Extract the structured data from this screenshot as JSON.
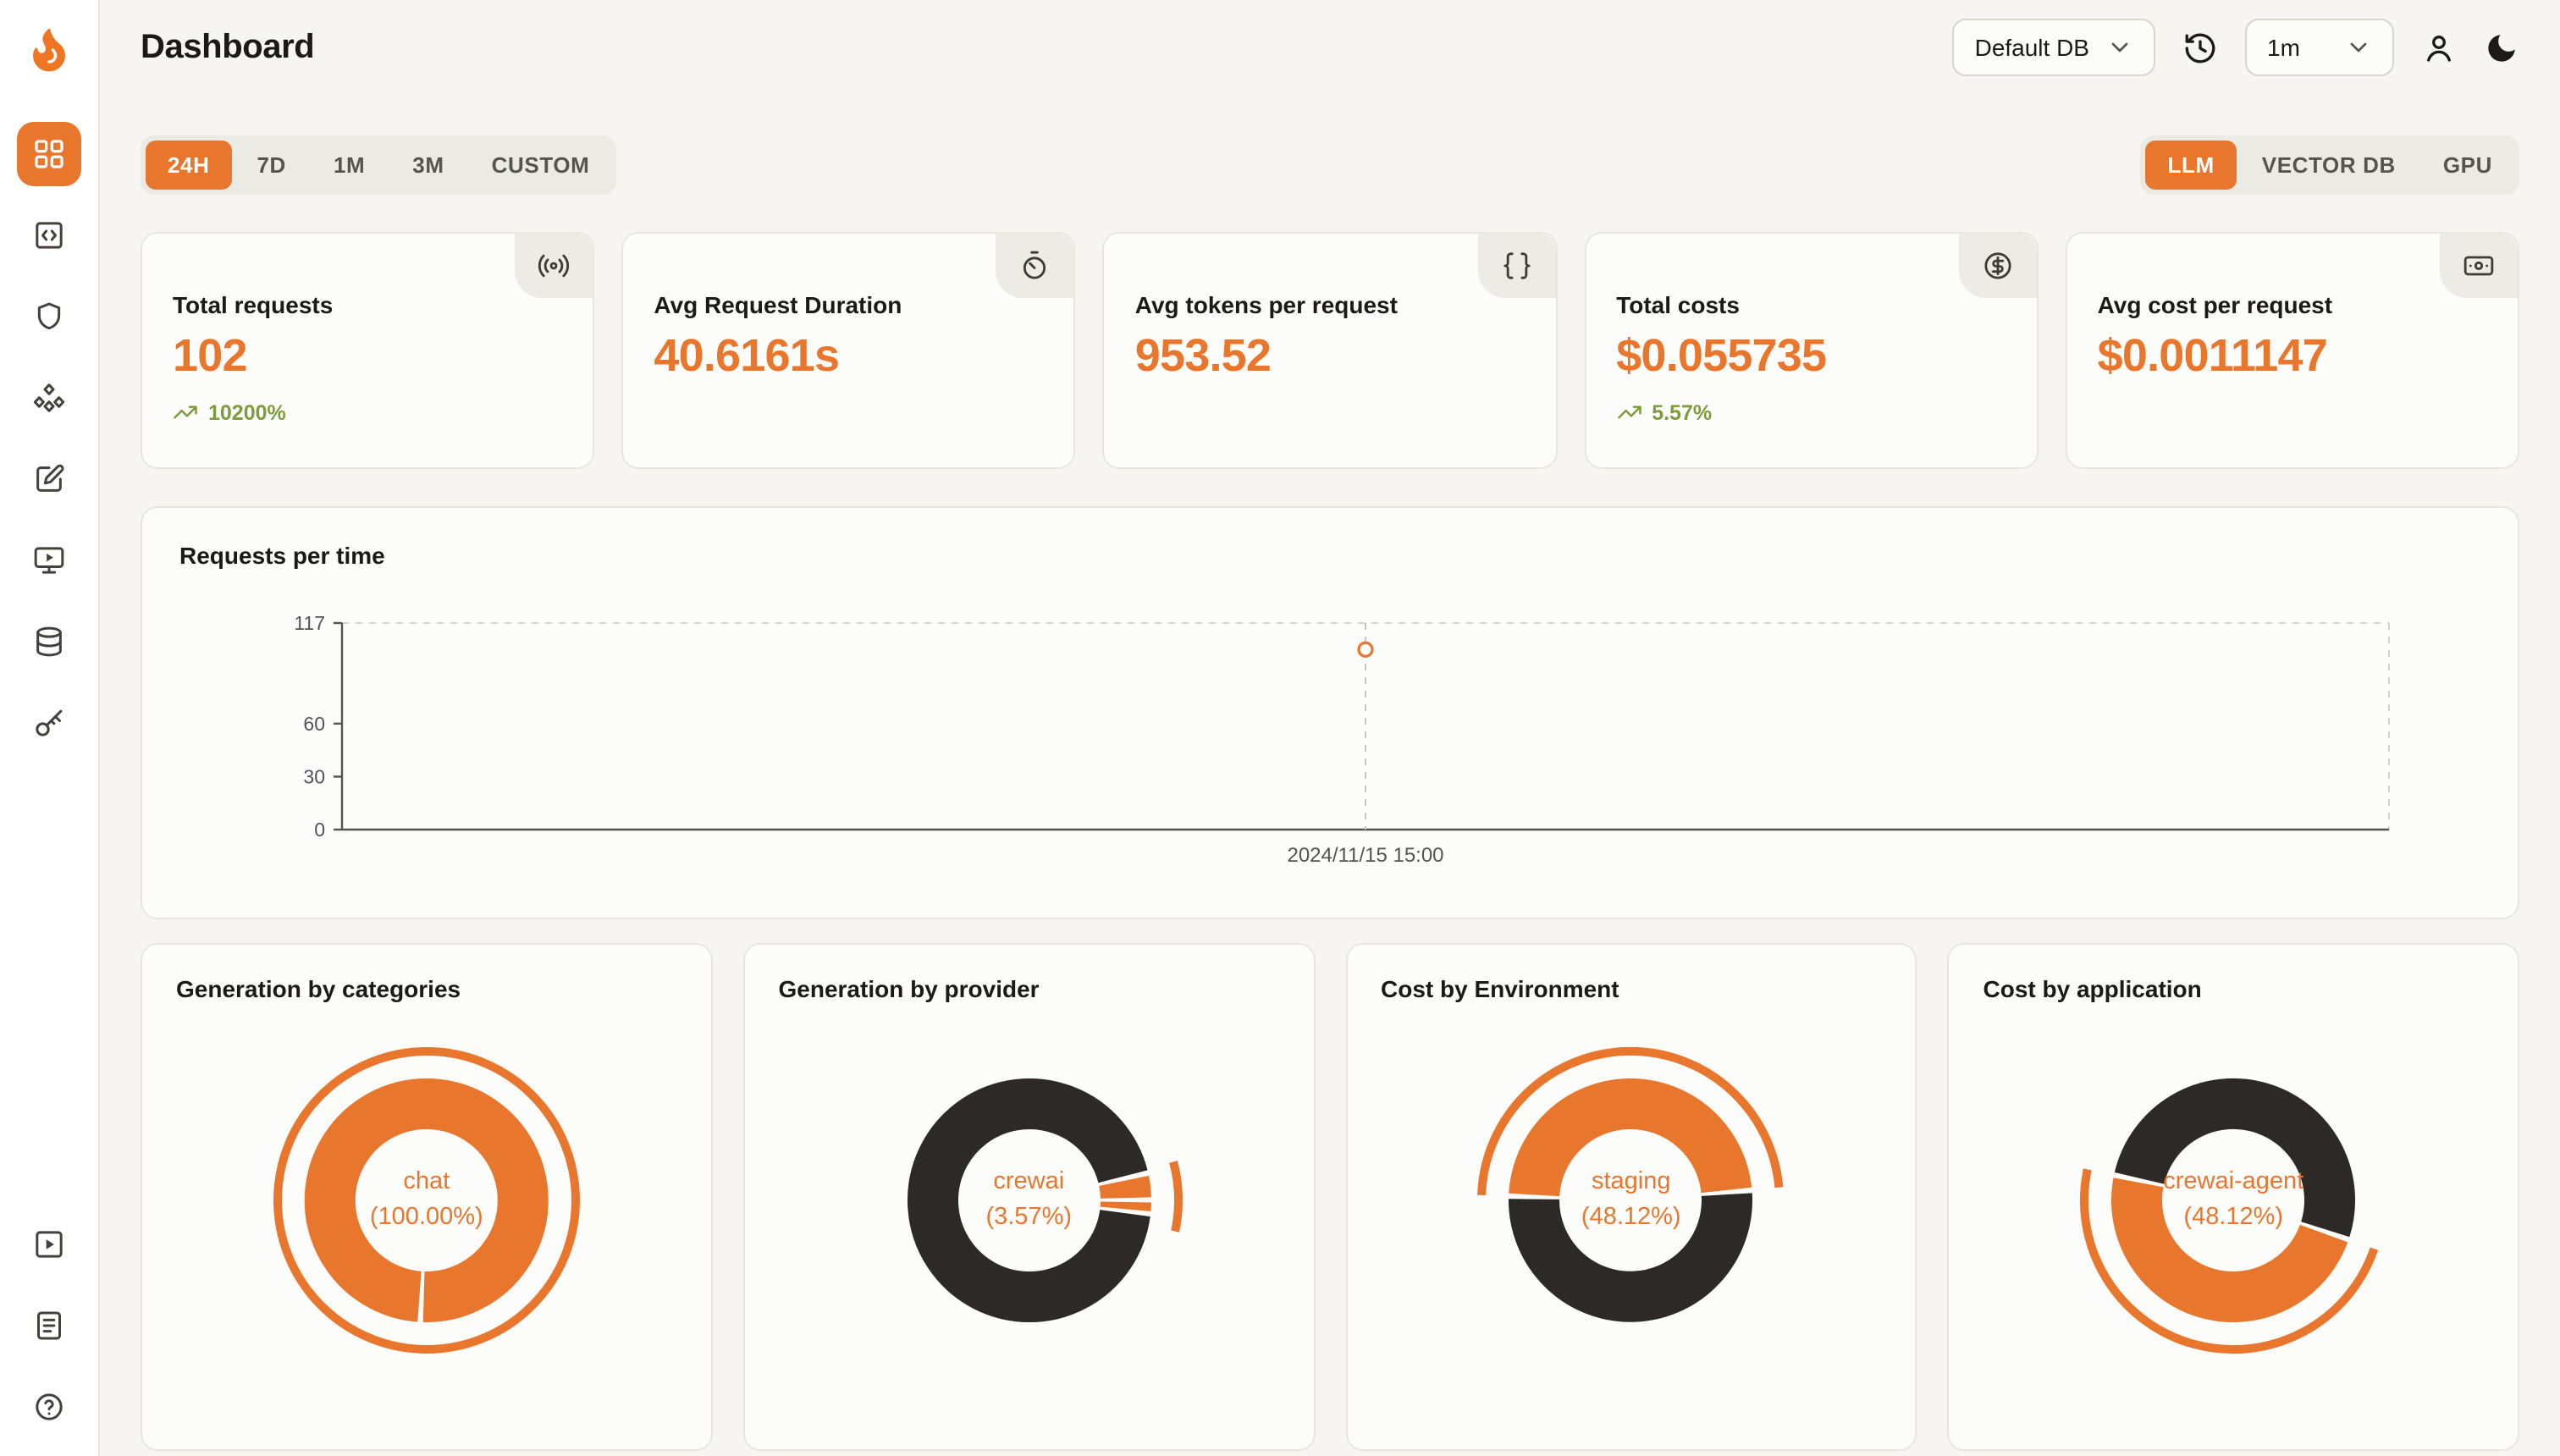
{
  "app": {
    "title": "Dashboard"
  },
  "header": {
    "db_select": "Default DB",
    "interval_select": "1m"
  },
  "filters": {
    "time_ranges": [
      "24H",
      "7D",
      "1M",
      "3M",
      "CUSTOM"
    ],
    "active_time_range": "24H",
    "categories": [
      "LLM",
      "VECTOR DB",
      "GPU"
    ],
    "active_category": "LLM"
  },
  "stats": [
    {
      "title": "Total requests",
      "value": "102",
      "trend": "10200%",
      "icon": "radio-tower-icon"
    },
    {
      "title": "Avg Request Duration",
      "value": "40.6161s",
      "icon": "timer-icon"
    },
    {
      "title": "Avg tokens per request",
      "value": "953.52",
      "icon": "braces-icon"
    },
    {
      "title": "Total costs",
      "value": "$0.055735",
      "trend": "5.57%",
      "icon": "circle-dollar-icon"
    },
    {
      "title": "Avg cost per request",
      "value": "$0.0011147",
      "icon": "banknote-icon"
    }
  ],
  "colors": {
    "accent": "#E8762C",
    "dark": "#2D2926",
    "green": "#7F9C3B"
  },
  "chart_data": [
    {
      "type": "line",
      "title": "Requests per time",
      "x": [
        "2024/11/15 15:00"
      ],
      "values": [
        102
      ],
      "yticks": [
        117,
        60,
        30,
        0
      ],
      "ylim": [
        0,
        117
      ],
      "grid": "dashed-frame",
      "point_style": "hollow-orange-circle"
    },
    {
      "type": "pie",
      "title": "Generation by categories",
      "center_label": "chat",
      "center_value": "(100.00%)",
      "rotation": 183,
      "segments": [
        {
          "label": "chat",
          "value": 100,
          "color": "#E8762C"
        }
      ],
      "outer_arc": {
        "start": 0,
        "sweep": 360
      }
    },
    {
      "type": "pie",
      "title": "Generation by provider",
      "center_label": "crewai",
      "center_value": "(3.57%)",
      "rotation": 77,
      "segments": [
        {
          "label": "crewai",
          "value": 3.57,
          "color": "#E8762C"
        },
        {
          "value": 1.8,
          "color": "#E8762C"
        },
        {
          "value": 94.63,
          "color": "#2D2926"
        }
      ],
      "outer_arc": {
        "start": 75,
        "sweep": 27
      }
    },
    {
      "type": "pie",
      "title": "Cost by Environment",
      "center_label": "staging",
      "center_value": "(48.12%)",
      "rotation": 272,
      "segments": [
        {
          "label": "staging",
          "value": 48.12,
          "color": "#E8762C"
        },
        {
          "value": 51.88,
          "color": "#2D2926"
        }
      ],
      "outer_arc": {
        "start": 272,
        "sweep": 173
      }
    },
    {
      "type": "pie",
      "title": "Cost by application",
      "center_label": "crewai-agent",
      "center_value": "(48.12%)",
      "rotation": 282,
      "segments": [
        {
          "value": 51.88,
          "color": "#2D2926"
        },
        {
          "label": "crewai-agent",
          "value": 48.12,
          "color": "#E8762C"
        }
      ],
      "outer_arc": {
        "start": 109,
        "sweep": 173
      }
    }
  ],
  "sidebar_items": [
    "dashboard",
    "requests",
    "exceptions",
    "integrations",
    "prompts",
    "playground",
    "databases",
    "api-keys"
  ],
  "sidebar_footer_items": [
    "getting-started",
    "docs",
    "help"
  ]
}
